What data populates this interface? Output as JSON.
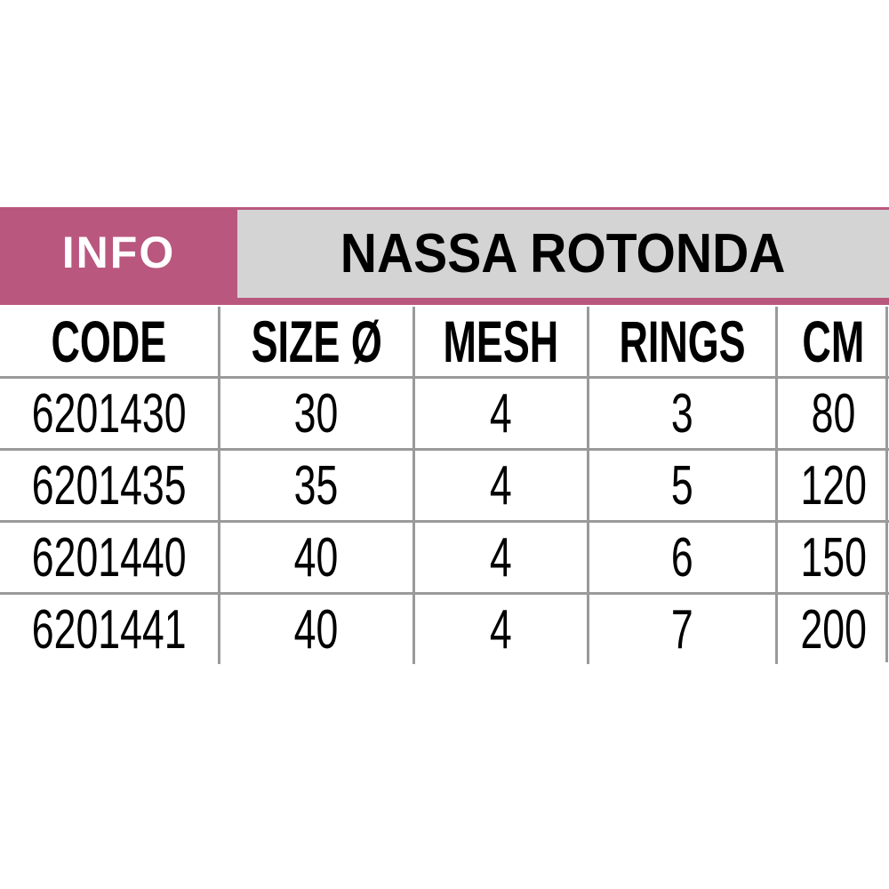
{
  "header": {
    "info_label": "INFO",
    "title": "NASSA ROTONDA",
    "colors": {
      "accent": "#b9577f",
      "title_bg": "#d4d4d4",
      "grid": "#9a9a9a"
    }
  },
  "table": {
    "columns": [
      "CODE",
      "SIZE Ø",
      "MESH",
      "RINGS",
      "CM"
    ],
    "rows": [
      [
        "6201430",
        "30",
        "4",
        "3",
        "80"
      ],
      [
        "6201435",
        "35",
        "4",
        "5",
        "120"
      ],
      [
        "6201440",
        "40",
        "4",
        "6",
        "150"
      ],
      [
        "6201441",
        "40",
        "4",
        "7",
        "200"
      ]
    ]
  }
}
